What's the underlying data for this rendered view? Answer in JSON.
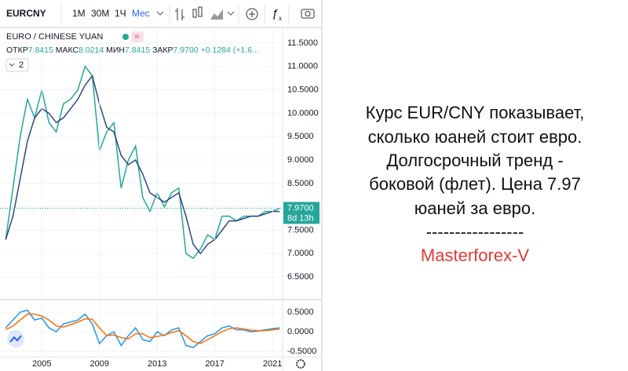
{
  "toolbar": {
    "symbol": "EURCNY",
    "intervals": [
      "1М",
      "30М",
      "1Ч",
      "Мес"
    ]
  },
  "legend": {
    "name": "EURO / CHINESE YUAN",
    "ohlc": [
      {
        "label": "ОТКР",
        "value": "7.8415"
      },
      {
        "label": "МАКС",
        "value": "8.0214"
      },
      {
        "label": "МИН",
        "value": "7.8415"
      },
      {
        "label": "ЗАКР",
        "value": "7.9700"
      }
    ],
    "change": "+0.1284 (+1.6...",
    "indicator": "2"
  },
  "chart_data": [
    {
      "type": "line",
      "x": [
        2002.5,
        2003,
        2003.5,
        2004,
        2004.5,
        2005,
        2005.5,
        2006,
        2006.5,
        2007,
        2007.5,
        2008,
        2008.5,
        2009,
        2009.5,
        2010,
        2010.5,
        2011,
        2011.5,
        2012,
        2012.5,
        2013,
        2013.5,
        2014,
        2014.5,
        2015,
        2015.5,
        2016,
        2016.5,
        2017,
        2017.5,
        2018,
        2018.5,
        2019,
        2019.5,
        2020,
        2020.5,
        2021,
        2021.5
      ],
      "series": [
        {
          "color": "#26a69a",
          "values": [
            7.3,
            8.4,
            9.5,
            10.3,
            9.9,
            10.5,
            9.8,
            9.6,
            10.2,
            10.3,
            10.5,
            11.0,
            10.8,
            9.2,
            9.6,
            9.8,
            8.4,
            9.0,
            9.3,
            8.2,
            7.9,
            8.3,
            8.0,
            8.3,
            8.4,
            7.0,
            6.9,
            7.1,
            7.4,
            7.3,
            7.8,
            7.8,
            7.7,
            7.8,
            7.8,
            7.8,
            7.9,
            7.9,
            7.97
          ]
        },
        {
          "color": "#2c4a7a",
          "values": [
            7.3,
            7.8,
            8.6,
            9.4,
            9.9,
            10.1,
            10.0,
            9.8,
            9.9,
            10.1,
            10.3,
            10.6,
            10.8,
            10.2,
            9.7,
            9.6,
            9.1,
            8.9,
            9.0,
            8.7,
            8.3,
            8.2,
            8.1,
            8.2,
            8.3,
            7.8,
            7.2,
            7.0,
            7.2,
            7.3,
            7.5,
            7.7,
            7.7,
            7.75,
            7.8,
            7.8,
            7.85,
            7.9,
            7.9
          ]
        }
      ],
      "xlim": [
        2002.1,
        2021.7
      ],
      "ylim": [
        6.05,
        11.8
      ],
      "yticks": [
        {
          "value": 11.5,
          "label": "11.5000"
        },
        {
          "value": 11,
          "label": "11.0000"
        },
        {
          "value": 10.5,
          "label": "10.5000"
        },
        {
          "value": 10,
          "label": "10.0000"
        },
        {
          "value": 9.5,
          "label": "9.5000"
        },
        {
          "value": 9,
          "label": "9.0000"
        },
        {
          "value": 8.5,
          "label": "8.5000"
        },
        {
          "value": 8,
          "label": "8.0000"
        },
        {
          "value": 7.5,
          "label": "7.5000"
        },
        {
          "value": 7,
          "label": "7.0000"
        },
        {
          "value": 6.5,
          "label": "6.5000"
        }
      ],
      "grid": true,
      "last_price": {
        "value": 7.97,
        "label": "7.9700"
      },
      "countdown": "8d 13h"
    },
    {
      "type": "line",
      "x": [
        2002.5,
        2003,
        2003.5,
        2004,
        2004.5,
        2005,
        2005.5,
        2006,
        2006.5,
        2007,
        2007.5,
        2008,
        2008.5,
        2009,
        2009.5,
        2010,
        2010.5,
        2011,
        2011.5,
        2012,
        2012.5,
        2013,
        2013.5,
        2014,
        2014.5,
        2015,
        2015.5,
        2016,
        2016.5,
        2017,
        2017.5,
        2018,
        2018.5,
        2019,
        2019.5,
        2020,
        2020.5,
        2021,
        2021.5
      ],
      "series": [
        {
          "color": "#2196f3",
          "values": [
            0.1,
            0.3,
            0.5,
            0.55,
            0.3,
            0.35,
            0.1,
            0.0,
            0.2,
            0.25,
            0.3,
            0.45,
            0.2,
            -0.3,
            -0.1,
            0.0,
            -0.35,
            -0.1,
            0.1,
            -0.2,
            -0.25,
            0.0,
            -0.1,
            0.05,
            0.1,
            -0.35,
            -0.4,
            -0.25,
            -0.1,
            -0.05,
            0.1,
            0.15,
            0.05,
            0.05,
            0.0,
            0.02,
            0.05,
            0.08,
            0.1
          ]
        },
        {
          "color": "#ff6d00",
          "values": [
            0.05,
            0.15,
            0.3,
            0.45,
            0.45,
            0.4,
            0.3,
            0.15,
            0.12,
            0.18,
            0.25,
            0.33,
            0.32,
            0.1,
            -0.1,
            -0.08,
            -0.15,
            -0.18,
            -0.05,
            -0.05,
            -0.15,
            -0.12,
            -0.08,
            -0.02,
            0.03,
            -0.1,
            -0.25,
            -0.3,
            -0.2,
            -0.1,
            0.0,
            0.08,
            0.1,
            0.07,
            0.04,
            0.03,
            0.03,
            0.05,
            0.07
          ]
        }
      ],
      "xlim": [
        2002.1,
        2021.7
      ],
      "ylim": [
        -0.64,
        0.76
      ],
      "yticks": [
        {
          "value": 0.5,
          "label": "0.5000"
        },
        {
          "value": 0,
          "label": "0.0000"
        },
        {
          "value": -0.5,
          "label": "-0.5000"
        }
      ],
      "xticks": [
        2005,
        2009,
        2013,
        2017,
        2021
      ],
      "grid": true
    }
  ],
  "annotation": {
    "lines": [
      "Курс EUR/CNY показывает,",
      "сколько юаней стоит евро.",
      "Долгосрочный тренд -",
      "боковой (флет). Цена 7.97",
      "юаней за евро."
    ],
    "separator": "-----------------",
    "signature": "Masterforex-V"
  }
}
